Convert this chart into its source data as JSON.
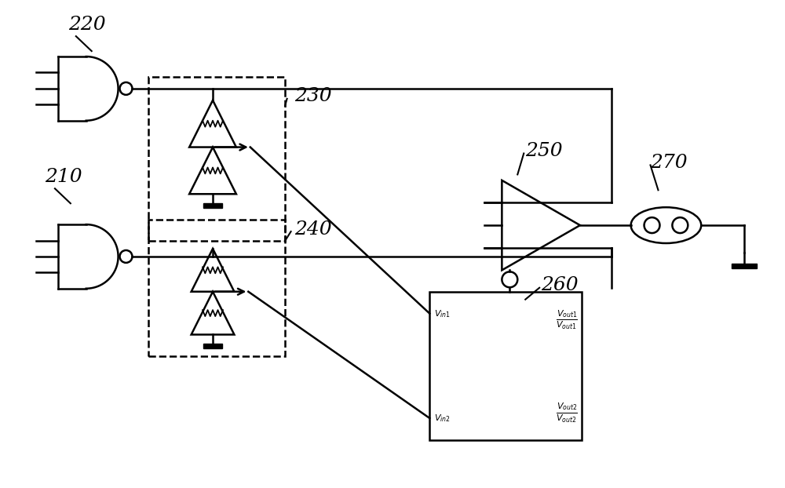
{
  "background": "#ffffff",
  "lw": 1.8,
  "label_220": "220",
  "label_210": "210",
  "label_230": "230",
  "label_240": "240",
  "label_250": "250",
  "label_260": "260",
  "label_270": "270",
  "label_fontsize": 18,
  "ic_label_fontsize": 8
}
